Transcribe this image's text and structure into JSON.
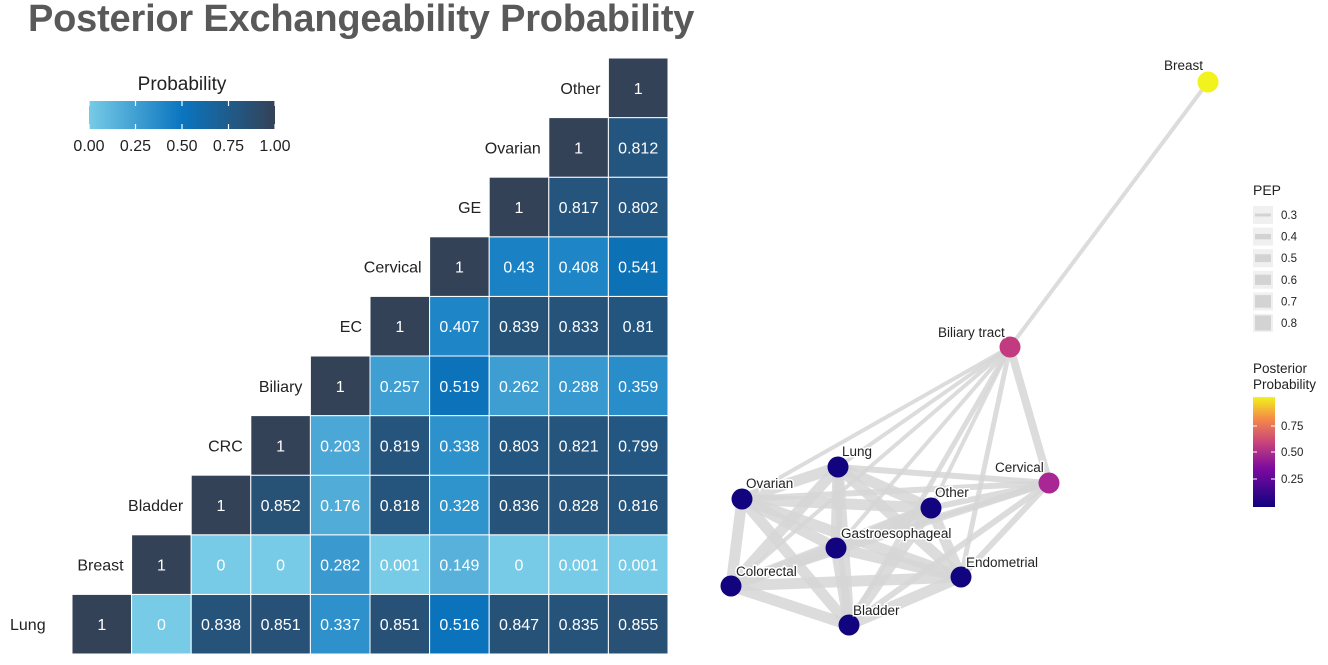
{
  "title": "Posterior Exchangeability Probability",
  "colors": {
    "scale_low": "#77cbe6",
    "scale_mid": "#0a75bf",
    "scale_high": "#344257",
    "edge": "#d6d6d6",
    "node_low": "#12037f",
    "node_mid": "#9d1d9e",
    "node_mid2": "#d54a73",
    "node_high": "#f2f21c"
  },
  "chart_data": [
    {
      "type": "heatmap",
      "title": "Posterior Exchangeability Probability",
      "labels": [
        "Lung",
        "Breast",
        "Bladder",
        "CRC",
        "Biliary",
        "EC",
        "Cervical",
        "GE",
        "Ovarian",
        "Other"
      ],
      "matrix": [
        [
          "1",
          "0",
          "0.838",
          "0.851",
          "0.337",
          "0.851",
          "0.516",
          "0.847",
          "0.835",
          "0.855"
        ],
        [
          "",
          "1",
          "0",
          "0",
          "0.282",
          "0.001",
          "0.149",
          "0",
          "0.001",
          "0.001"
        ],
        [
          "",
          "",
          "1",
          "0.852",
          "0.176",
          "0.818",
          "0.328",
          "0.836",
          "0.828",
          "0.816"
        ],
        [
          "",
          "",
          "",
          "1",
          "0.203",
          "0.819",
          "0.338",
          "0.803",
          "0.821",
          "0.799"
        ],
        [
          "",
          "",
          "",
          "",
          "1",
          "0.257",
          "0.519",
          "0.262",
          "0.288",
          "0.359"
        ],
        [
          "",
          "",
          "",
          "",
          "",
          "1",
          "0.407",
          "0.839",
          "0.833",
          "0.81"
        ],
        [
          "",
          "",
          "",
          "",
          "",
          "",
          "1",
          "0.43",
          "0.408",
          "0.541"
        ],
        [
          "",
          "",
          "",
          "",
          "",
          "",
          "",
          "1",
          "0.817",
          "0.802"
        ],
        [
          "",
          "",
          "",
          "",
          "",
          "",
          "",
          "",
          "1",
          "0.812"
        ],
        [
          "",
          "",
          "",
          "",
          "",
          "",
          "",
          "",
          "",
          "1"
        ]
      ],
      "legend": {
        "title": "Probability",
        "ticks": [
          "0.00",
          "0.25",
          "0.50",
          "0.75",
          "1.00"
        ],
        "range": [
          0,
          1
        ]
      }
    },
    {
      "type": "network",
      "nodes": [
        {
          "label": "Breast",
          "value": 1.0
        },
        {
          "label": "Biliary tract",
          "value": 0.55
        },
        {
          "label": "Cervical",
          "value": 0.4
        },
        {
          "label": "Lung",
          "value": 0.0
        },
        {
          "label": "Ovarian",
          "value": 0.0
        },
        {
          "label": "Other",
          "value": 0.0
        },
        {
          "label": "Gastroesophageal",
          "value": 0.0
        },
        {
          "label": "Endometrial",
          "value": 0.0
        },
        {
          "label": "Colorectal",
          "value": 0.0
        },
        {
          "label": "Bladder",
          "value": 0.0
        }
      ],
      "pep_legend": {
        "title": "PEP",
        "values": [
          "0.3",
          "0.4",
          "0.5",
          "0.6",
          "0.7",
          "0.8"
        ]
      },
      "posterior_legend": {
        "title_line1": "Posterior",
        "title_line2": "Probability",
        "ticks": [
          "0.75",
          "0.50",
          "0.25"
        ]
      }
    }
  ]
}
